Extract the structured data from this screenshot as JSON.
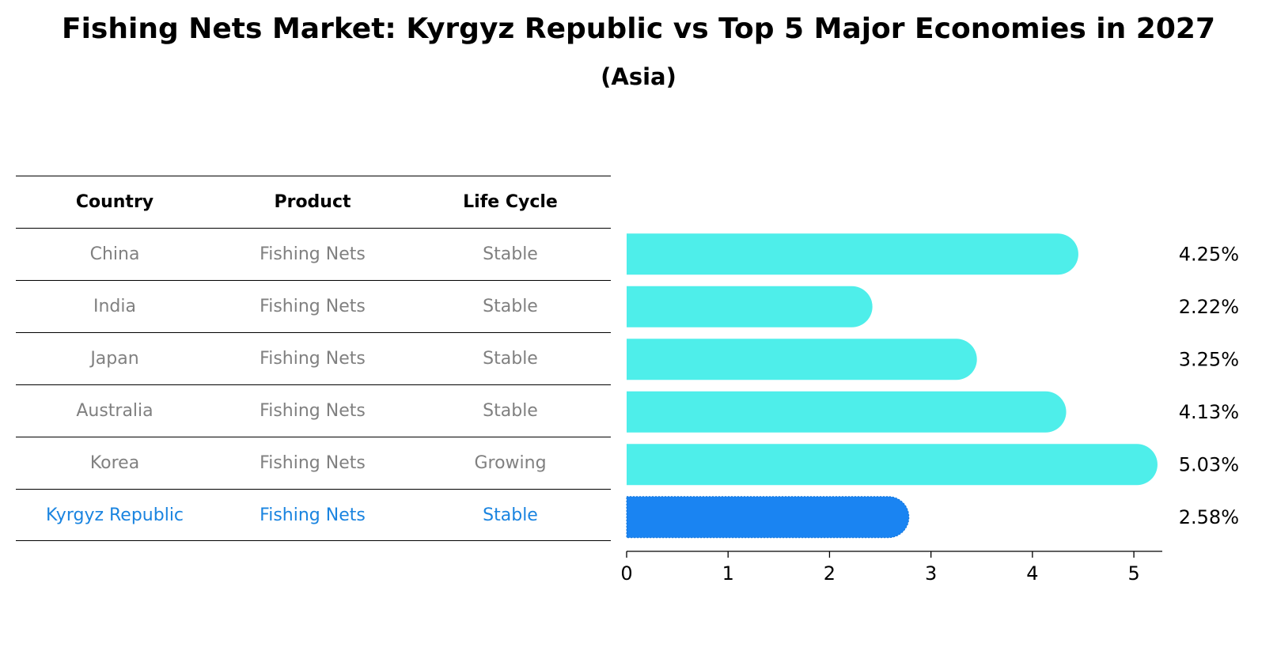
{
  "title": "Fishing Nets Market: Kyrgyz Republic vs Top 5 Major Economies in 2027",
  "subtitle": "(Asia)",
  "table": {
    "headers": [
      "Country",
      "Product",
      "Life Cycle"
    ],
    "rows": [
      {
        "country": "China",
        "product": "Fishing Nets",
        "life_cycle": "Stable"
      },
      {
        "country": "India",
        "product": "Fishing Nets",
        "life_cycle": "Stable"
      },
      {
        "country": "Japan",
        "product": "Fishing Nets",
        "life_cycle": "Stable"
      },
      {
        "country": "Australia",
        "product": "Fishing Nets",
        "life_cycle": "Stable"
      },
      {
        "country": "Korea",
        "product": "Fishing Nets",
        "life_cycle": "Growing"
      },
      {
        "country": "Kyrgyz Republic",
        "product": "Fishing Nets",
        "life_cycle": "Stable"
      }
    ]
  },
  "chart_data": {
    "type": "bar",
    "orientation": "horizontal",
    "categories": [
      "China",
      "India",
      "Japan",
      "Australia",
      "Korea",
      "Kyrgyz Republic"
    ],
    "values": [
      4.25,
      2.22,
      3.25,
      4.13,
      5.03,
      2.58
    ],
    "value_labels": [
      "4.25%",
      "2.22%",
      "3.25%",
      "4.13%",
      "5.03%",
      "2.58%"
    ],
    "highlight": "Kyrgyz Republic",
    "xlim": [
      0,
      5.28
    ],
    "xticks": [
      0,
      1,
      2,
      3,
      4,
      5
    ],
    "grid": false,
    "colors": {
      "default": "#4eeeea",
      "highlight": "#1a84f2",
      "highlight_text": "#1a84e0"
    }
  }
}
